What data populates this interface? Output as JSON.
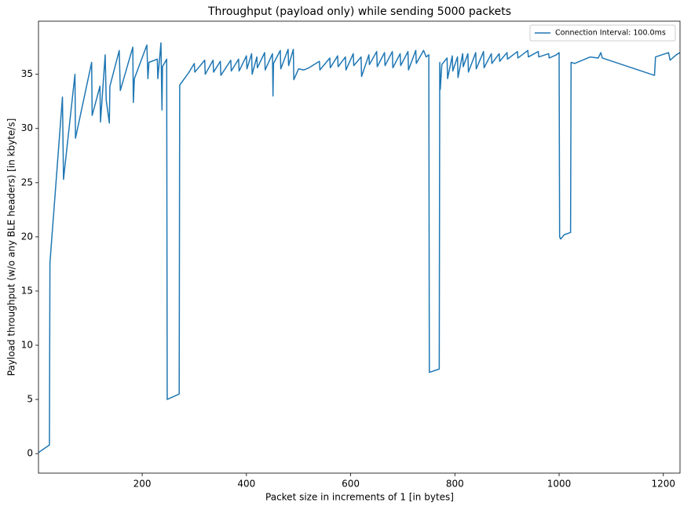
{
  "chart_data": {
    "type": "line",
    "title": "Throughput (payload only) while sending 5000 packets",
    "xlabel": "Packet size in increments of 1 [in bytes]",
    "ylabel": "Payload throughput (w/o any BLE headers) [in kbyte/s]",
    "x": [
      1,
      22,
      23,
      47,
      49,
      71,
      72,
      103,
      104,
      119,
      120,
      129,
      131,
      137,
      138,
      156,
      158,
      182,
      183,
      185,
      209,
      211,
      213,
      229,
      230,
      236,
      238,
      239,
      247,
      248,
      271,
      272,
      290,
      300,
      301,
      320,
      321,
      336,
      337,
      350,
      351,
      370,
      371,
      385,
      386,
      400,
      401,
      410,
      411,
      420,
      421,
      435,
      436,
      450,
      451,
      452,
      465,
      466,
      480,
      481,
      490,
      491,
      500,
      510,
      520,
      540,
      541,
      560,
      561,
      575,
      576,
      590,
      591,
      605,
      606,
      620,
      621,
      635,
      636,
      650,
      651,
      665,
      666,
      680,
      681,
      695,
      696,
      710,
      711,
      725,
      726,
      740,
      745,
      750,
      751,
      770,
      771,
      772,
      775,
      785,
      786,
      795,
      796,
      805,
      806,
      815,
      816,
      825,
      826,
      840,
      841,
      855,
      856,
      870,
      871,
      885,
      886,
      900,
      901,
      920,
      921,
      940,
      941,
      960,
      961,
      980,
      981,
      995,
      1000,
      1001,
      1003,
      1010,
      1022,
      1023,
      1030,
      1060,
      1075,
      1080,
      1083,
      1183,
      1185,
      1210,
      1213,
      1225,
      1232
    ],
    "series": [
      {
        "name": "Connection Interval: 100.0ms",
        "color": "#1f77b4",
        "values": [
          0.1,
          0.8,
          17.6,
          32.9,
          25.3,
          35.0,
          29.1,
          36.1,
          31.2,
          33.9,
          30.6,
          36.8,
          32.6,
          30.5,
          33.9,
          37.2,
          33.5,
          37.5,
          32.4,
          34.6,
          37.7,
          34.6,
          36.1,
          36.4,
          34.6,
          37.9,
          31.7,
          35.7,
          36.4,
          5.0,
          5.5,
          34.0,
          35.2,
          36.0,
          35.2,
          36.3,
          35.0,
          36.3,
          35.2,
          36.2,
          34.9,
          36.3,
          35.3,
          36.4,
          35.3,
          36.7,
          35.5,
          36.9,
          35.0,
          36.6,
          35.6,
          37.0,
          35.4,
          36.9,
          33.0,
          36.0,
          37.2,
          35.5,
          37.3,
          35.8,
          37.3,
          34.5,
          35.5,
          35.4,
          35.6,
          36.2,
          35.4,
          36.5,
          35.6,
          36.7,
          35.7,
          36.6,
          35.4,
          36.9,
          35.8,
          36.6,
          34.8,
          36.8,
          35.9,
          37.1,
          35.7,
          37.0,
          35.8,
          37.1,
          35.6,
          36.9,
          35.8,
          37.1,
          35.4,
          37.2,
          36.0,
          37.2,
          36.6,
          36.8,
          7.5,
          7.8,
          36.1,
          33.6,
          35.9,
          36.5,
          34.6,
          36.7,
          35.3,
          36.6,
          34.7,
          36.9,
          35.7,
          36.9,
          35.2,
          37.0,
          35.5,
          37.1,
          35.6,
          36.9,
          36.0,
          36.9,
          36.2,
          37.0,
          36.4,
          37.1,
          36.5,
          37.2,
          36.6,
          37.1,
          36.6,
          36.9,
          36.5,
          36.8,
          37.0,
          20.0,
          19.8,
          20.2,
          20.4,
          36.1,
          36.0,
          36.6,
          36.5,
          37.0,
          36.5,
          34.9,
          36.6,
          37.0,
          36.3,
          36.8,
          37.0
        ]
      }
    ],
    "xlim": [
      1,
      1232
    ],
    "ylim": [
      -1.8,
      39.9
    ],
    "xticks": [
      200,
      400,
      600,
      800,
      1000,
      1200
    ],
    "yticks": [
      0,
      5,
      10,
      15,
      20,
      25,
      30,
      35
    ],
    "legend": "upper right"
  }
}
